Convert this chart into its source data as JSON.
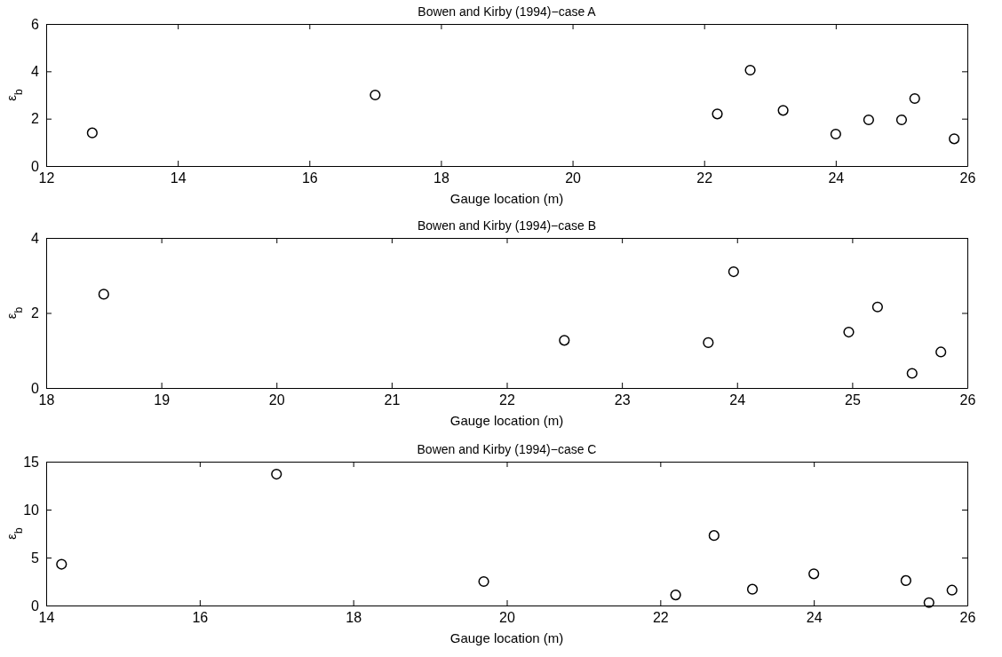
{
  "chart_data": [
    {
      "type": "scatter",
      "title": "Bowen and Kirby (1994)−case A",
      "xlabel": "Gauge location (m)",
      "ylabel": "ε$_{b}$",
      "marker": "circle",
      "series": [
        {
          "color": "#000000",
          "x": [
            12.7,
            17.0,
            22.2,
            22.7,
            23.2,
            24.0,
            24.5,
            25.0,
            25.2,
            25.8
          ],
          "values": [
            1.4,
            3.0,
            2.2,
            4.05,
            2.35,
            1.35,
            1.95,
            1.95,
            2.85,
            1.15
          ]
        }
      ],
      "xlim": [
        12,
        26
      ],
      "xticks": [
        12,
        14,
        16,
        18,
        20,
        22,
        24,
        26
      ],
      "ylim": [
        0,
        6
      ],
      "yticks": [
        0,
        2,
        4,
        6
      ]
    },
    {
      "type": "scatter",
      "title": "Bowen and Kirby (1994)−case B",
      "xlabel": "Gauge location (m)",
      "ylabel": "ε$_{b}$",
      "marker": "circle",
      "series": [
        {
          "color": "#000000",
          "x": [
            18.5,
            22.5,
            23.75,
            23.97,
            24.97,
            25.22,
            25.52,
            25.77
          ],
          "values": [
            2.5,
            1.27,
            1.21,
            3.1,
            1.49,
            2.16,
            0.39,
            0.96
          ]
        }
      ],
      "xlim": [
        18,
        26
      ],
      "xticks": [
        18,
        19,
        20,
        21,
        22,
        23,
        24,
        25,
        26
      ],
      "ylim": [
        0,
        4
      ],
      "yticks": [
        0,
        2,
        4
      ]
    },
    {
      "type": "scatter",
      "title": "Bowen and Kirby (1994)−case C",
      "xlabel": "Gauge location (m)",
      "ylabel": "ε$_{b}$",
      "marker": "circle",
      "series": [
        {
          "color": "#000000",
          "x": [
            14.2,
            17.0,
            19.7,
            22.2,
            22.7,
            23.2,
            24.0,
            25.2,
            25.5,
            25.8
          ],
          "values": [
            4.3,
            13.7,
            2.5,
            1.1,
            7.3,
            1.7,
            3.3,
            2.6,
            0.3,
            1.6
          ]
        }
      ],
      "xlim": [
        14,
        26
      ],
      "xticks": [
        14,
        16,
        18,
        20,
        22,
        24,
        26
      ],
      "ylim": [
        0,
        15
      ],
      "yticks": [
        0,
        5,
        10,
        15
      ]
    }
  ]
}
